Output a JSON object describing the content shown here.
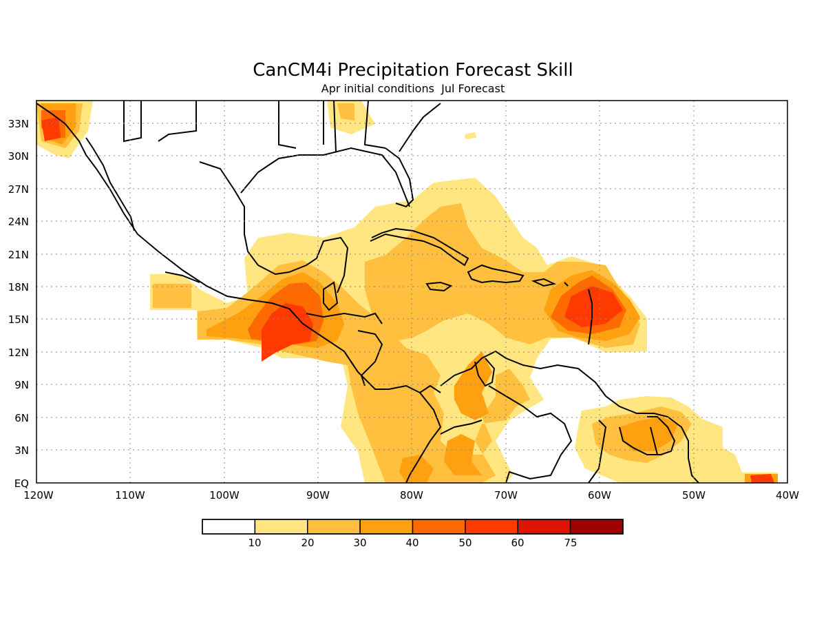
{
  "title": "CanCM4i Precipitation Forecast Skill",
  "subtitle": "Apr initial conditions  Jul Forecast",
  "lat_labels": [
    "33N",
    "30N",
    "27N",
    "24N",
    "21N",
    "18N",
    "15N",
    "12N",
    "9N",
    "6N",
    "3N",
    "EQ"
  ],
  "lon_labels": [
    "120W",
    "110W",
    "100W",
    "90W",
    "80W",
    "70W",
    "60W",
    "50W",
    "40W"
  ],
  "colorbar": {
    "tick_labels": [
      "10",
      "20",
      "30",
      "40",
      "50",
      "60",
      "75"
    ],
    "colors": [
      "#ffffff",
      "#ffe680",
      "#ffc040",
      "#ffa010",
      "#ff6a00",
      "#ff3a00",
      "#dd1500",
      "#a00000"
    ]
  },
  "map_extent": {
    "lon_min": -120,
    "lon_max": -40,
    "lat_min": 0,
    "lat_max": 35
  }
}
